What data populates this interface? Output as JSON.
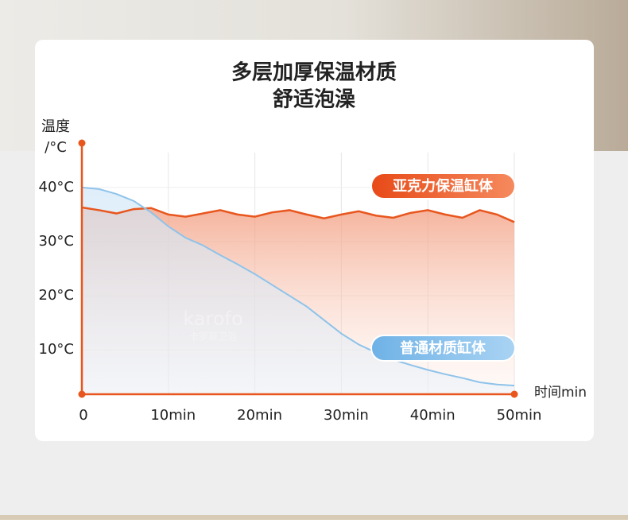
{
  "chart_data": {
    "type": "line",
    "title": "多层加厚保温材质",
    "subtitle": "舒适泡澡",
    "y_label": [
      "温度",
      "/°C"
    ],
    "x_label": "时间min",
    "watermark": [
      "karofo",
      "卡罗菲卫浴"
    ],
    "x": [
      0,
      2,
      4,
      6,
      8,
      10,
      12,
      14,
      16,
      18,
      20,
      22,
      24,
      26,
      28,
      30,
      32,
      34,
      36,
      38,
      40,
      42,
      44,
      46,
      48,
      50
    ],
    "series": [
      {
        "name": "亚克力保温缸体",
        "color": "#e8561e",
        "values": [
          36.3,
          35.8,
          35.2,
          36.0,
          36.2,
          35.0,
          34.6,
          35.2,
          35.8,
          35.0,
          34.6,
          35.4,
          35.8,
          35.0,
          34.3,
          35.0,
          35.6,
          34.8,
          34.4,
          35.3,
          35.8,
          35.0,
          34.4,
          35.8,
          35.0,
          33.6
        ]
      },
      {
        "name": "普通材质缸体",
        "color": "#8ec3ea",
        "values": [
          40.0,
          39.7,
          38.8,
          37.5,
          35.4,
          32.8,
          30.7,
          29.3,
          27.5,
          25.8,
          24.0,
          22.0,
          20.0,
          18.0,
          15.5,
          13.0,
          11.0,
          9.5,
          8.2,
          7.2,
          6.3,
          5.5,
          4.8,
          4.0,
          3.6,
          3.4
        ]
      }
    ],
    "xlim": [
      0,
      50
    ],
    "xticks": [
      0,
      {
        "value": 10,
        "label": "10min"
      },
      {
        "value": 20,
        "label": "20min"
      },
      {
        "value": 30,
        "label": "30min"
      },
      {
        "value": 40,
        "label": "40min"
      },
      {
        "value": 50,
        "label": "50min"
      }
    ],
    "ylim": [
      1.8,
      48.2
    ],
    "yticks": [
      {
        "value": 10,
        "label": "10°C"
      },
      {
        "value": 20,
        "label": "20°C"
      },
      {
        "value": 30,
        "label": "30°C"
      },
      {
        "value": 40,
        "label": "40°C"
      }
    ],
    "grid": true
  }
}
